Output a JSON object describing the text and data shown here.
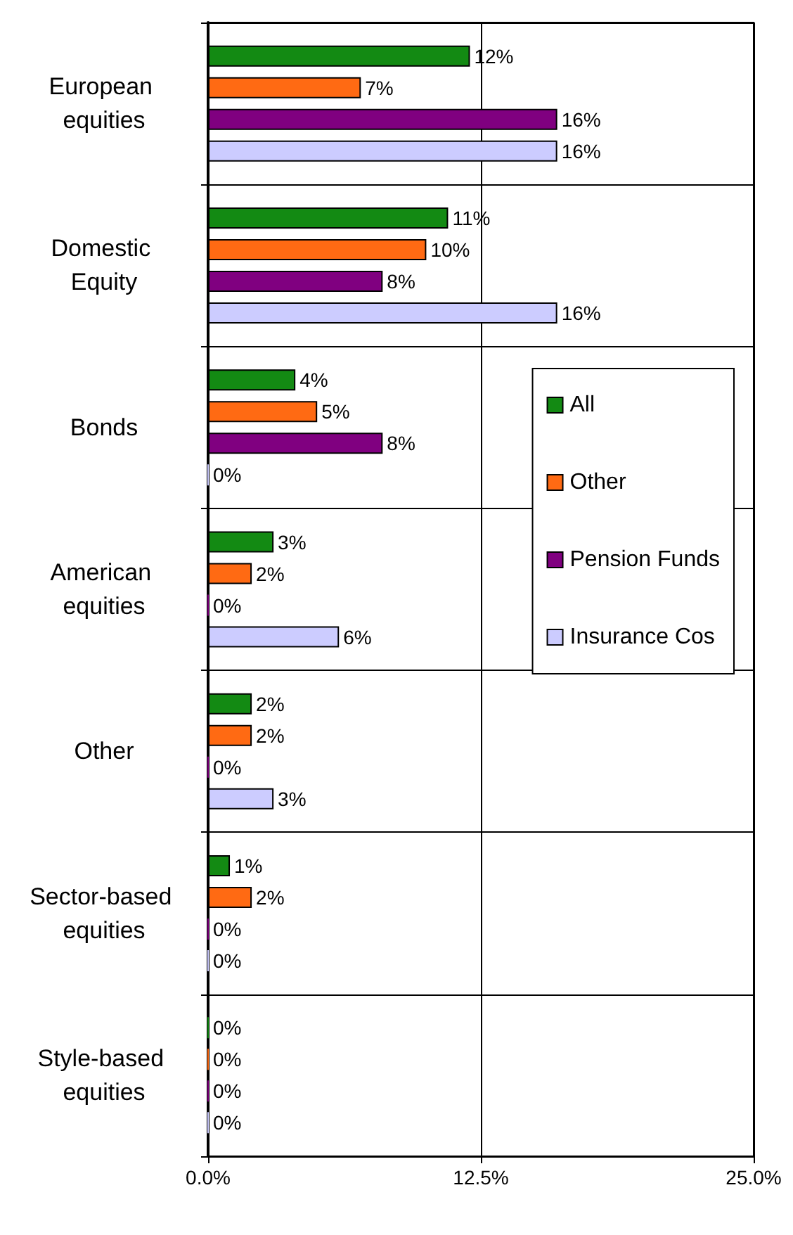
{
  "chart_data": {
    "type": "bar",
    "orientation": "horizontal",
    "categories": [
      "European equities",
      "Domestic Equity",
      "Bonds",
      "American equities",
      "Other",
      "Sector-based equities",
      "Style-based equities"
    ],
    "series": [
      {
        "name": "All",
        "color": "#138a13",
        "values": [
          12,
          11,
          4,
          3,
          2,
          1,
          0
        ],
        "value_labels": [
          "12%",
          "11%",
          "4%",
          "3%",
          "2%",
          "1%",
          "0%"
        ]
      },
      {
        "name": "Other",
        "color": "#ff6a13",
        "values": [
          7,
          10,
          5,
          2,
          2,
          2,
          0
        ],
        "value_labels": [
          "7%",
          "10%",
          "5%",
          "2%",
          "2%",
          "2%",
          "0%"
        ]
      },
      {
        "name": "Pension Funds",
        "color": "#800080",
        "values": [
          16,
          8,
          8,
          0,
          0,
          0,
          0
        ],
        "value_labels": [
          "16%",
          "8%",
          "8%",
          "0%",
          "0%",
          "0%",
          "0%"
        ]
      },
      {
        "name": "Insurance Cos",
        "color": "#ccccff",
        "values": [
          16,
          16,
          0,
          6,
          3,
          0,
          0
        ],
        "value_labels": [
          "16%",
          "16%",
          "0%",
          "6%",
          "3%",
          "0%",
          "0%"
        ]
      }
    ],
    "xlim": [
      0,
      25
    ],
    "xticks": [
      {
        "value": 0,
        "label": "0.0%"
      },
      {
        "value": 12.5,
        "label": "12.5%"
      },
      {
        "value": 25,
        "label": "25.0%"
      }
    ],
    "grid": true,
    "legend": "right"
  }
}
